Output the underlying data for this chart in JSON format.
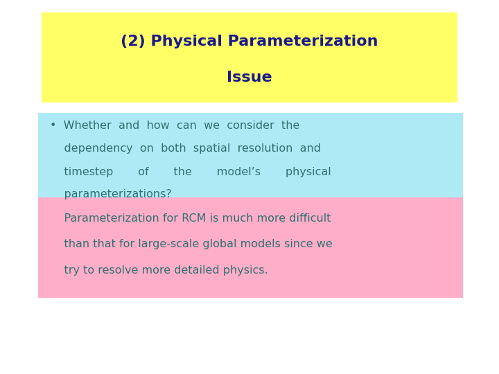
{
  "title_line1": "(2) Physical Parameterization",
  "title_line2": "Issue",
  "title_color": "#1a1a8c",
  "title_bg_color": "#ffff66",
  "title_fontsize": 16,
  "bullet_text_line1": "•  Whether  and  how  can  we  consider  the",
  "bullet_text_line2": "    dependency  on  both  spatial  resolution  and",
  "bullet_text_line3": "    timestep       of       the       model’s       physical",
  "bullet_text_line4": "    parameterizations?",
  "bullet_bg_color": "#aeeaf5",
  "bullet_text_color": "#2f7070",
  "bullet_fontsize": 11.5,
  "pink_text_line1": "    Parameterization for RCM is much more difficult",
  "pink_text_line2": "    than that for large-scale global models since we",
  "pink_text_line3": "    try to resolve more detailed physics.",
  "pink_bg_color": "#ffaec9",
  "pink_text_color": "#2f7070",
  "pink_fontsize": 11.5,
  "bg_color": "#ffffff"
}
